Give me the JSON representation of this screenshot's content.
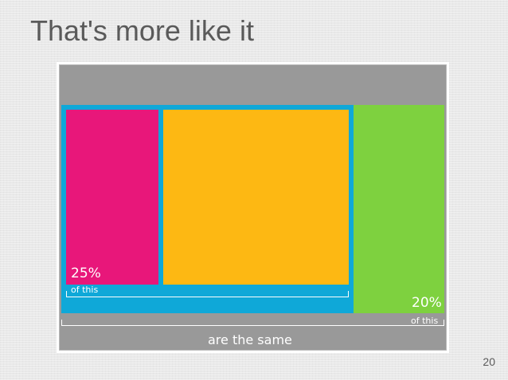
{
  "slide": {
    "title": "That's more like it",
    "page_number": "20"
  },
  "diagram": {
    "inner_percent": "25%",
    "inner_of_this": "of this",
    "outer_percent": "20%",
    "outer_of_this": "of this",
    "conclusion": "are the same"
  },
  "colors": {
    "outer_gray": "#999999",
    "container_blue": "#0fa8d8",
    "pink": "#e8177a",
    "orange": "#fdb813",
    "green": "#7ed13f"
  }
}
